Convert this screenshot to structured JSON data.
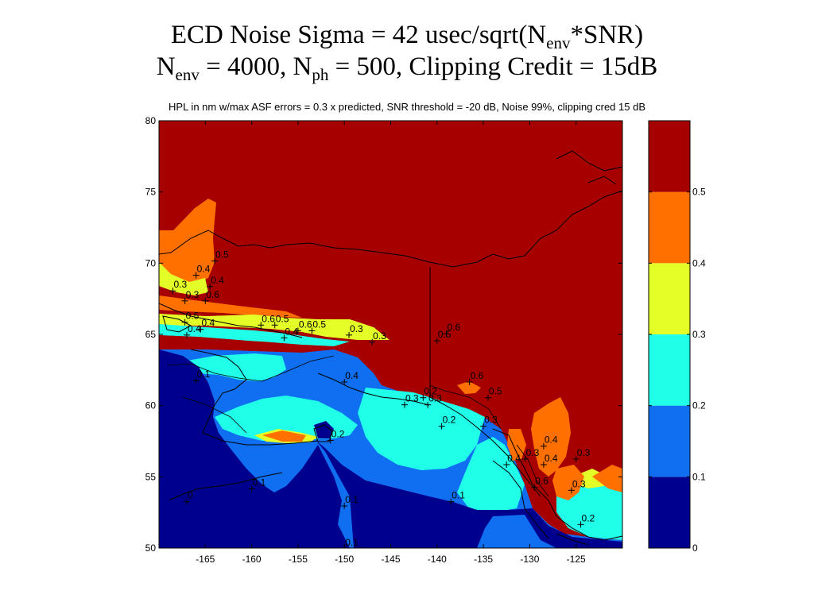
{
  "slide_title": {
    "line1_pre": "ECD Noise Sigma = 42 usec/sqrt(N",
    "line1_sub": "env",
    "line1_post": "*SNR)",
    "line2_n1": "N",
    "line2_sub1": "env",
    "line2_mid": " = 4000, N",
    "line2_sub2": "ph",
    "line2_post": " = 500, Clipping Credit = 15dB"
  },
  "chart_data": {
    "type": "heatmap",
    "title": "HPL in nm w/max ASF errors = 0.3 x predicted, SNR threshold = -20 dB, Noise 99%, clipping cred 15 dB",
    "xlabel": "",
    "ylabel": "",
    "xlim": [
      -170,
      -120
    ],
    "ylim": [
      50,
      80
    ],
    "x_ticks": [
      "-165",
      "-160",
      "-155",
      "-150",
      "-145",
      "-140",
      "-135",
      "-130",
      "-125"
    ],
    "y_ticks": [
      "50",
      "55",
      "60",
      "65",
      "70",
      "75",
      "80"
    ],
    "colorbar": {
      "levels": [
        0,
        0.1,
        0.2,
        0.3,
        0.4,
        0.5
      ],
      "tick_labels": [
        "0",
        "0.1",
        "0.2",
        "0.3",
        "0.4",
        "0.5"
      ],
      "colors": [
        "#00008f",
        "#0f6ff0",
        "#20ffe8",
        "#e4ff28",
        "#ff7000",
        "#a70000"
      ]
    },
    "contour_labels": [
      {
        "text": "0.5",
        "lon": -164,
        "lat": 70.6
      },
      {
        "text": "0.4",
        "lon": -166,
        "lat": 69.6
      },
      {
        "text": "0.4",
        "lon": -164.5,
        "lat": 68.8
      },
      {
        "text": "0.3",
        "lon": -168.5,
        "lat": 68.5
      },
      {
        "text": "0.3",
        "lon": -167.2,
        "lat": 67.8
      },
      {
        "text": "0.6",
        "lon": -165,
        "lat": 67.8
      },
      {
        "text": "0.5",
        "lon": -167.2,
        "lat": 66.3
      },
      {
        "text": "0.4",
        "lon": -165.5,
        "lat": 65.8
      },
      {
        "text": "0.4",
        "lon": -167,
        "lat": 65.4
      },
      {
        "text": "0.6",
        "lon": -159,
        "lat": 66.1
      },
      {
        "text": "0.5",
        "lon": -157.5,
        "lat": 66.1
      },
      {
        "text": "0.4",
        "lon": -156.5,
        "lat": 65.2
      },
      {
        "text": "0.6",
        "lon": -155,
        "lat": 65.7
      },
      {
        "text": "0.5",
        "lon": -153.5,
        "lat": 65.7
      },
      {
        "text": "0.3",
        "lon": -149.5,
        "lat": 65.4
      },
      {
        "text": "0.3",
        "lon": -147,
        "lat": 64.9
      },
      {
        "text": "0.6",
        "lon": -139,
        "lat": 65.5
      },
      {
        "text": "0.5",
        "lon": -140,
        "lat": 65
      },
      {
        "text": "0.1",
        "lon": -166,
        "lat": 62.2
      },
      {
        "text": "0.4",
        "lon": -150,
        "lat": 62.1
      },
      {
        "text": "0.6",
        "lon": -136.5,
        "lat": 62.1
      },
      {
        "text": "0.5",
        "lon": -134.5,
        "lat": 61
      },
      {
        "text": "0.2",
        "lon": -141.5,
        "lat": 61
      },
      {
        "text": "0.3",
        "lon": -143.5,
        "lat": 60.5
      },
      {
        "text": "0.3",
        "lon": -141,
        "lat": 60.5
      },
      {
        "text": "0.2",
        "lon": -139.5,
        "lat": 59
      },
      {
        "text": "0.3",
        "lon": -135,
        "lat": 59
      },
      {
        "text": "0.2",
        "lon": -151.5,
        "lat": 58
      },
      {
        "text": "0.4",
        "lon": -128.5,
        "lat": 57.6
      },
      {
        "text": "0.3",
        "lon": -130.5,
        "lat": 56.7
      },
      {
        "text": "0.4",
        "lon": -132.5,
        "lat": 56.3
      },
      {
        "text": "0.4",
        "lon": -128.5,
        "lat": 56.3
      },
      {
        "text": "0.3",
        "lon": -125,
        "lat": 56.7
      },
      {
        "text": "0.1",
        "lon": -160,
        "lat": 54.6
      },
      {
        "text": "0.6",
        "lon": -129.5,
        "lat": 54.7
      },
      {
        "text": "0.3",
        "lon": -125.5,
        "lat": 54.5
      },
      {
        "text": "0",
        "lon": -167,
        "lat": 53.7
      },
      {
        "text": "0.1",
        "lon": -150,
        "lat": 53.4
      },
      {
        "text": "0.1",
        "lon": -138.5,
        "lat": 53.7
      },
      {
        "text": "0.2",
        "lon": -124.5,
        "lat": 52.1
      },
      {
        "text": "0.1",
        "lon": -150,
        "lat": 50.4
      }
    ]
  }
}
